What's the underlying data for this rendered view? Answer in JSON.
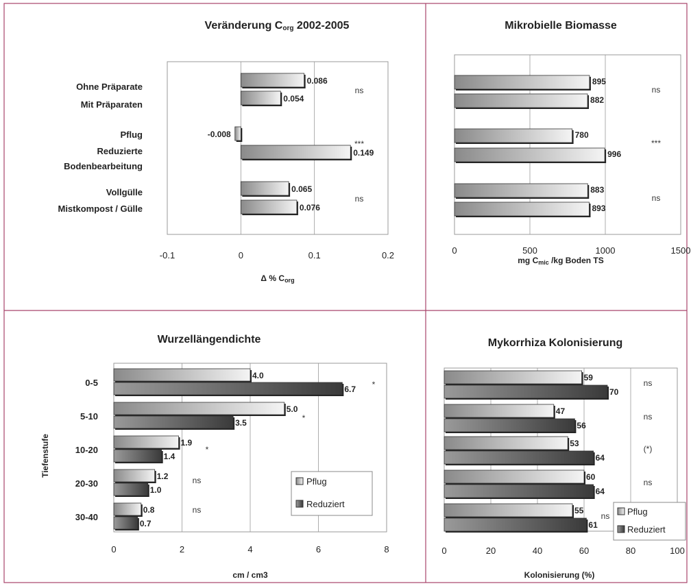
{
  "colors": {
    "border": "#a8436a",
    "grid": "#999999",
    "light_bar_start": "#8a8a8a",
    "light_bar_end": "#f4f4f4",
    "dark_bar_start": "#9a9a9a",
    "dark_bar_end": "#3a3a3a",
    "shadow": "#222222"
  },
  "chart_data": [
    {
      "type": "bar",
      "orientation": "horizontal",
      "title": "Veränderung C",
      "title_sub": "org",
      "title_tail": " 2002-2005",
      "xlabel": "Δ % C",
      "xlabel_sub": "org",
      "xlim": [
        -0.1,
        0.2
      ],
      "xticks": [
        "-0.1",
        "0",
        "0.1",
        "0.2"
      ],
      "grid": true,
      "groups": [
        {
          "labels": [
            "Ohne Präparate",
            "Mit Präparaten"
          ],
          "values": [
            0.086,
            0.054
          ],
          "value_labels": [
            "0.086",
            "0.054"
          ],
          "significance": "ns"
        },
        {
          "labels": [
            "Pflug",
            "Reduzierte Bodenbearbeitung"
          ],
          "values": [
            -0.008,
            0.149
          ],
          "value_labels": [
            "-0.008",
            "0.149"
          ],
          "significance": "***"
        },
        {
          "labels": [
            "Vollgülle",
            "Mistkompost / Gülle"
          ],
          "values": [
            0.065,
            0.076
          ],
          "value_labels": [
            "0.065",
            "0.076"
          ],
          "significance": "ns"
        }
      ]
    },
    {
      "type": "bar",
      "orientation": "horizontal",
      "title": "Mikrobielle Biomasse",
      "xlabel": "mg C",
      "xlabel_sub": "mic",
      "xlabel_tail": " /kg Boden TS",
      "xlim": [
        0,
        1500
      ],
      "xticks": [
        "0",
        "500",
        "1000",
        "1500"
      ],
      "grid": true,
      "groups": [
        {
          "values": [
            895,
            882
          ],
          "value_labels": [
            "895",
            "882"
          ],
          "significance": "ns"
        },
        {
          "values": [
            780,
            996
          ],
          "value_labels": [
            "780",
            "996"
          ],
          "significance": "***"
        },
        {
          "values": [
            883,
            893
          ],
          "value_labels": [
            "883",
            "893"
          ],
          "significance": "ns"
        }
      ]
    },
    {
      "type": "bar",
      "orientation": "horizontal",
      "title": "Wurzellängendichte",
      "ylabel": "Tiefenstufe",
      "xlabel": "cm / cm3",
      "xlim": [
        0,
        8
      ],
      "xticks": [
        "0",
        "2",
        "4",
        "6",
        "8"
      ],
      "grid": true,
      "legend_position": "bottom-right",
      "series": [
        {
          "name": "Pflug",
          "values": [
            4.0,
            5.0,
            1.9,
            1.2,
            0.8
          ],
          "value_labels": [
            "4.0",
            "5.0",
            "1.9",
            "1.2",
            "0.8"
          ]
        },
        {
          "name": "Reduziert",
          "values": [
            6.7,
            3.5,
            1.4,
            1.0,
            0.7
          ],
          "value_labels": [
            "6.7",
            "3.5",
            "1.4",
            "1.0",
            "0.7"
          ]
        }
      ],
      "categories": [
        "0-5",
        "5-10",
        "10-20",
        "20-30",
        "30-40"
      ],
      "significance": [
        "*",
        "*",
        "*",
        "ns",
        "ns"
      ]
    },
    {
      "type": "bar",
      "orientation": "horizontal",
      "title": "Mykorrhiza Kolonisierung",
      "xlabel": "Kolonisierung (%)",
      "xlim": [
        0,
        100
      ],
      "xticks": [
        "0",
        "20",
        "40",
        "60",
        "80",
        "100"
      ],
      "grid": true,
      "legend_position": "bottom-right",
      "series": [
        {
          "name": "Pflug",
          "values": [
            59,
            47,
            53,
            60,
            55
          ],
          "value_labels": [
            "59",
            "47",
            "53",
            "60",
            "55"
          ]
        },
        {
          "name": "Reduziert",
          "values": [
            70,
            56,
            64,
            64,
            61
          ],
          "value_labels": [
            "70",
            "56",
            "64",
            "64",
            "61"
          ]
        }
      ],
      "significance": [
        "ns",
        "ns",
        "(*)",
        "ns",
        "ns"
      ]
    }
  ]
}
